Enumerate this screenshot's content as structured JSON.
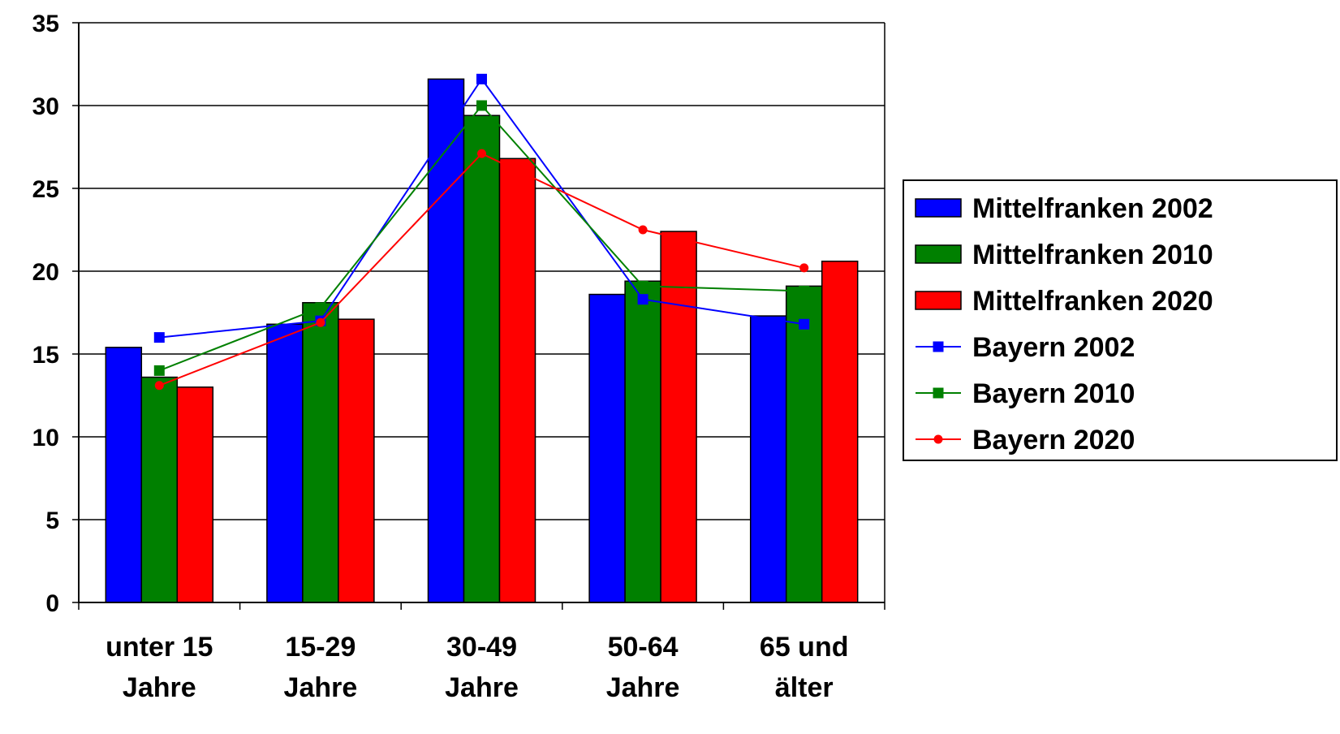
{
  "chart_data": {
    "type": "bar",
    "categories": [
      [
        "unter 15",
        "Jahre"
      ],
      [
        "15-29",
        "Jahre"
      ],
      [
        "30-49",
        "Jahre"
      ],
      [
        "50-64",
        "Jahre"
      ],
      [
        "65 und",
        "älter"
      ]
    ],
    "ylim": [
      0,
      35
    ],
    "yticks": [
      "0",
      "5",
      "10",
      "15",
      "20",
      "25",
      "30",
      "35"
    ],
    "grid": true,
    "legend_position": "right",
    "bar_series": [
      {
        "name": "Mittelfranken 2002",
        "color": "#0000FF",
        "values": [
          15.4,
          16.8,
          31.6,
          18.6,
          17.3
        ]
      },
      {
        "name": "Mittelfranken 2010",
        "color": "#008000",
        "values": [
          13.6,
          18.1,
          29.4,
          19.4,
          19.1
        ]
      },
      {
        "name": "Mittelfranken 2020",
        "color": "#FF0000",
        "values": [
          13.0,
          17.1,
          26.8,
          22.4,
          20.6
        ]
      }
    ],
    "line_series": [
      {
        "name": "Bayern 2002",
        "color": "#0000FF",
        "marker": "square",
        "values": [
          16.0,
          17.0,
          31.6,
          18.3,
          16.8
        ]
      },
      {
        "name": "Bayern 2010",
        "color": "#008000",
        "marker": "square",
        "values": [
          14.0,
          17.8,
          30.0,
          19.1,
          18.8
        ]
      },
      {
        "name": "Bayern 2020",
        "color": "#FF0000",
        "marker": "circle",
        "values": [
          13.1,
          16.9,
          27.1,
          22.5,
          20.2
        ]
      }
    ]
  }
}
